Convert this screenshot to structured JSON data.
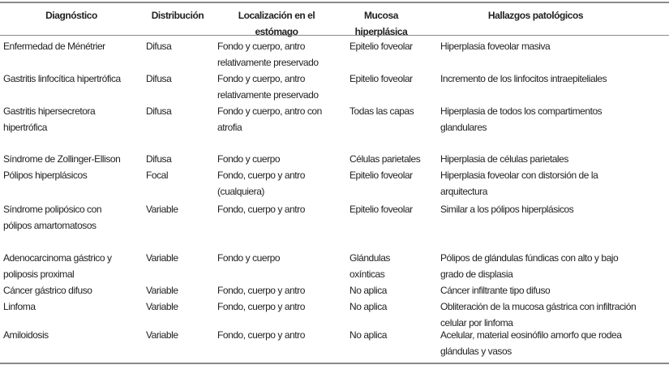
{
  "headers": [
    "Diagnóstico",
    "Distribución",
    "Localización en el\nestómago",
    "Mucosa\nhiperplásica",
    "Hallazgos patológicos"
  ],
  "rows": [
    [
      "Enfermedad de Ménétrier",
      "Difusa",
      "Fondo y cuerpo, antro\nrelativamente preservado",
      "Epitelio foveolar",
      "Hiperplasia foveolar masiva"
    ],
    [
      "Gastritis linfocítica hipertrófica",
      "Difusa",
      "Fondo y cuerpo, antro\nrelativamente preservado",
      "Epitelio foveolar",
      "Incremento de los linfocitos intraepiteliales"
    ],
    [
      "Gastritis hipersecretora\nhipertrófica",
      "Difusa",
      "Fondo y cuerpo, antro con\natrofia",
      "Todas las capas",
      "Hiperplasia de todos los compartimentos\nglandulares"
    ],
    [
      "Síndrome de Zollinger-Ellison",
      "Difusa",
      "Fondo y cuerpo",
      "Células parietales",
      "Hiperplasia de células parietales"
    ],
    [
      "Pólipos hiperplásicos",
      "Focal",
      "Fondo, cuerpo y antro\n(cualquiera)",
      "Epitelio foveolar",
      "Hiperplasia foveolar con distorsión de la\narquitectura"
    ],
    [
      "Síndrome polipósico con\npólipos amartomatosos",
      "Variable",
      "Fondo, cuerpo y antro",
      "Epitelio foveolar",
      "Similar a los pólipos hiperplásicos"
    ],
    [
      "Adenocarcinoma gástrico y\npoliposis proximal",
      "Variable",
      "Fondo y cuerpo",
      "Glándulas\noxínticas",
      "Pólipos de glándulas fúndicas con alto y bajo\ngrado de displasia"
    ],
    [
      "Cáncer gástrico difuso",
      "Variable",
      "Fondo, cuerpo y antro",
      "No aplica",
      "Cáncer infiltrante tipo difuso"
    ],
    [
      "Linfoma",
      "Variable",
      "Fondo, cuerpo y antro",
      "No aplica",
      "Obliteración de la mucosa gástrica con infiltración\ncelular por linfoma"
    ],
    [
      "Amiloidosis",
      "Variable",
      "Fondo, cuerpo y antro",
      "No aplica",
      "Acelular, material eosinófilo amorfo que rodea\nglándulas y vasos"
    ]
  ]
}
